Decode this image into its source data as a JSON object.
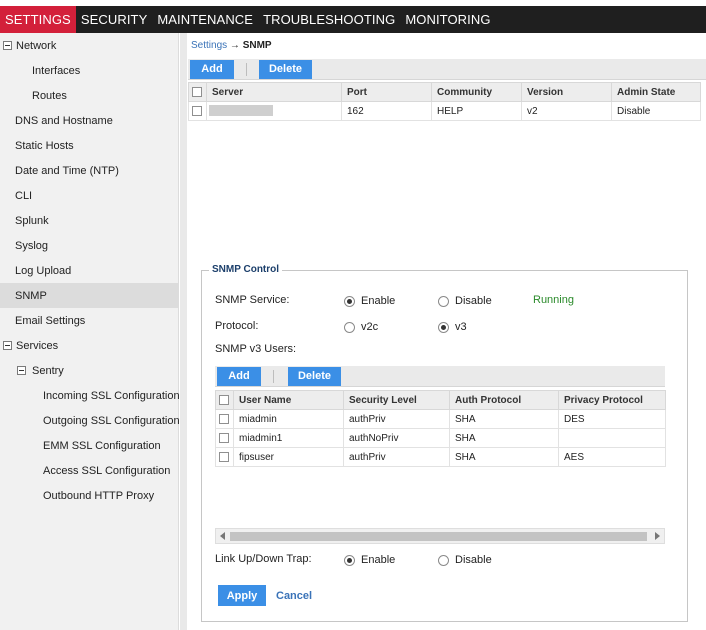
{
  "topnav": {
    "items": [
      {
        "label": "SETTINGS",
        "active": true
      },
      {
        "label": "SECURITY",
        "active": false
      },
      {
        "label": "MAINTENANCE",
        "active": false
      },
      {
        "label": "TROUBLESHOOTING",
        "active": false
      },
      {
        "label": "MONITORING",
        "active": false
      }
    ]
  },
  "sidebar": {
    "items": [
      {
        "label": "Network",
        "expandable": true
      },
      {
        "label": "Interfaces"
      },
      {
        "label": "Routes"
      },
      {
        "label": "DNS and Hostname"
      },
      {
        "label": "Static Hosts"
      },
      {
        "label": "Date and Time (NTP)"
      },
      {
        "label": "CLI"
      },
      {
        "label": "Splunk"
      },
      {
        "label": "Syslog"
      },
      {
        "label": "Log Upload"
      },
      {
        "label": "SNMP",
        "selected": true
      },
      {
        "label": "Email Settings"
      },
      {
        "label": "Services",
        "expandable": true
      },
      {
        "label": "Sentry",
        "expandable": true
      },
      {
        "label": "Incoming SSL Configuration"
      },
      {
        "label": "Outgoing SSL Configuration"
      },
      {
        "label": "EMM SSL Configuration"
      },
      {
        "label": "Access SSL Configuration"
      },
      {
        "label": "Outbound HTTP Proxy"
      }
    ]
  },
  "breadcrumb": {
    "parent": "Settings",
    "arrow": "→",
    "current": "SNMP"
  },
  "servers": {
    "add_label": "Add",
    "delete_label": "Delete",
    "columns": [
      "Server",
      "Port",
      "Community",
      "Version",
      "Admin State"
    ],
    "rows": [
      {
        "server": "",
        "port": "162",
        "community": "HELP",
        "version": "v2",
        "admin_state": "Disable"
      }
    ]
  },
  "snmp_control": {
    "legend": "SNMP Control",
    "service_label": "SNMP Service:",
    "service_enable": "Enable",
    "service_disable": "Disable",
    "service_selected": "Enable",
    "status": "Running",
    "protocol_label": "Protocol:",
    "protocol_v2c": "v2c",
    "protocol_v3": "v3",
    "protocol_selected": "v3",
    "users_label": "SNMP v3 Users:",
    "users_add_label": "Add",
    "users_delete_label": "Delete",
    "user_columns": [
      "User Name",
      "Security Level",
      "Auth Protocol",
      "Privacy Protocol"
    ],
    "users": [
      {
        "name": "miadmin",
        "security_level": "authPriv",
        "auth": "SHA",
        "privacy": "DES"
      },
      {
        "name": "miadmin1",
        "security_level": "authNoPriv",
        "auth": "SHA",
        "privacy": ""
      },
      {
        "name": "fipsuser",
        "security_level": "authPriv",
        "auth": "SHA",
        "privacy": "AES"
      }
    ],
    "trap_label": "Link Up/Down Trap:",
    "trap_enable": "Enable",
    "trap_disable": "Disable",
    "trap_selected": "Enable",
    "apply_label": "Apply",
    "cancel_label": "Cancel"
  }
}
